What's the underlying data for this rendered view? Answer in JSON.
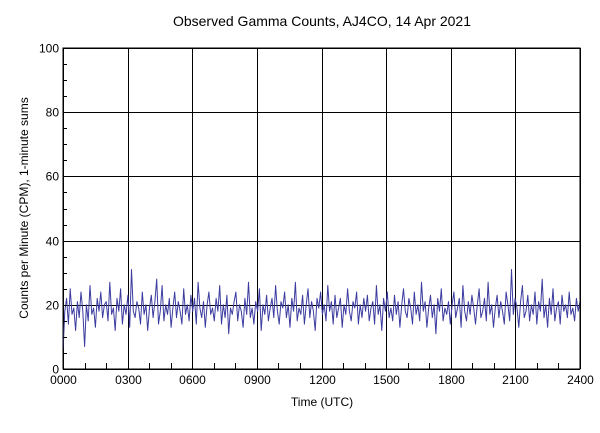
{
  "chart_data": {
    "type": "line",
    "title": "Observed Gamma Counts, AJ4CO, 14 Apr 2021",
    "xlabel": "Time (UTC)",
    "ylabel": "Counts per Minute (CPM), 1-minute sums",
    "xlim": [
      0,
      24
    ],
    "ylim": [
      0,
      100
    ],
    "x_tick_labels": [
      "0000",
      "0300",
      "0600",
      "0900",
      "1200",
      "1500",
      "1800",
      "2100",
      "2400"
    ],
    "y_tick_labels": [
      "0",
      "20",
      "40",
      "60",
      "80",
      "100"
    ],
    "grid": true,
    "line_color": "#3c3ca0",
    "series": [
      {
        "values": [
          5,
          18,
          22,
          14,
          25,
          17,
          19,
          12,
          21,
          16,
          24,
          18,
          7,
          20,
          15,
          26,
          17,
          19,
          13,
          22,
          18,
          24,
          16,
          20,
          21,
          15,
          27,
          17,
          19,
          12,
          22,
          18,
          25,
          14,
          20,
          17,
          23,
          13,
          31,
          18,
          16,
          21,
          19,
          14,
          24,
          17,
          20,
          12,
          19,
          23,
          16,
          21,
          28,
          14,
          18,
          26,
          15,
          20,
          17,
          22,
          13,
          19,
          24,
          16,
          21,
          18,
          14,
          25,
          17,
          20,
          15,
          23,
          18,
          22,
          14,
          27,
          19,
          16,
          21,
          13,
          20,
          24,
          17,
          19,
          15,
          22,
          18,
          26,
          14,
          20,
          16,
          23,
          11,
          19,
          17,
          21,
          24,
          15,
          20,
          18,
          13,
          22,
          17,
          27,
          16,
          19,
          14,
          21,
          18,
          25,
          12,
          20,
          17,
          23,
          15,
          19,
          22,
          16,
          26,
          18,
          14,
          21,
          19,
          24,
          16,
          20,
          13,
          22,
          18,
          27,
          15,
          19,
          17,
          23,
          14,
          20,
          25,
          16,
          21,
          18,
          12,
          22,
          19,
          24,
          17,
          20,
          15,
          26,
          18,
          21,
          14,
          23,
          16,
          19,
          22,
          13,
          20,
          17,
          25,
          18,
          15,
          21,
          19,
          24,
          14,
          20,
          16,
          22,
          18,
          23,
          15,
          19,
          21,
          14,
          26,
          17,
          20,
          12,
          22,
          18,
          24,
          16,
          19,
          15,
          23,
          17,
          21,
          13,
          20,
          25,
          18,
          16,
          22,
          19,
          14,
          24,
          17,
          20,
          15,
          27,
          18,
          21,
          13,
          19,
          23,
          16,
          20,
          11,
          22,
          18,
          25,
          15,
          19,
          17,
          21,
          14,
          20,
          24,
          16,
          19,
          22,
          13,
          26,
          18,
          15,
          21,
          17,
          23,
          19,
          14,
          20,
          25,
          16,
          18,
          22,
          15,
          27,
          17,
          20,
          13,
          19,
          23,
          16,
          21,
          18,
          14,
          24,
          20,
          15,
          31,
          17,
          22,
          19,
          13,
          21,
          26,
          16,
          18,
          23,
          15,
          20,
          17,
          24,
          14,
          21,
          18,
          28,
          16,
          20,
          13,
          22,
          17,
          25,
          15,
          19,
          21,
          14,
          23,
          18,
          20,
          16,
          24,
          17,
          19,
          15,
          22,
          18,
          21
        ]
      }
    ]
  }
}
